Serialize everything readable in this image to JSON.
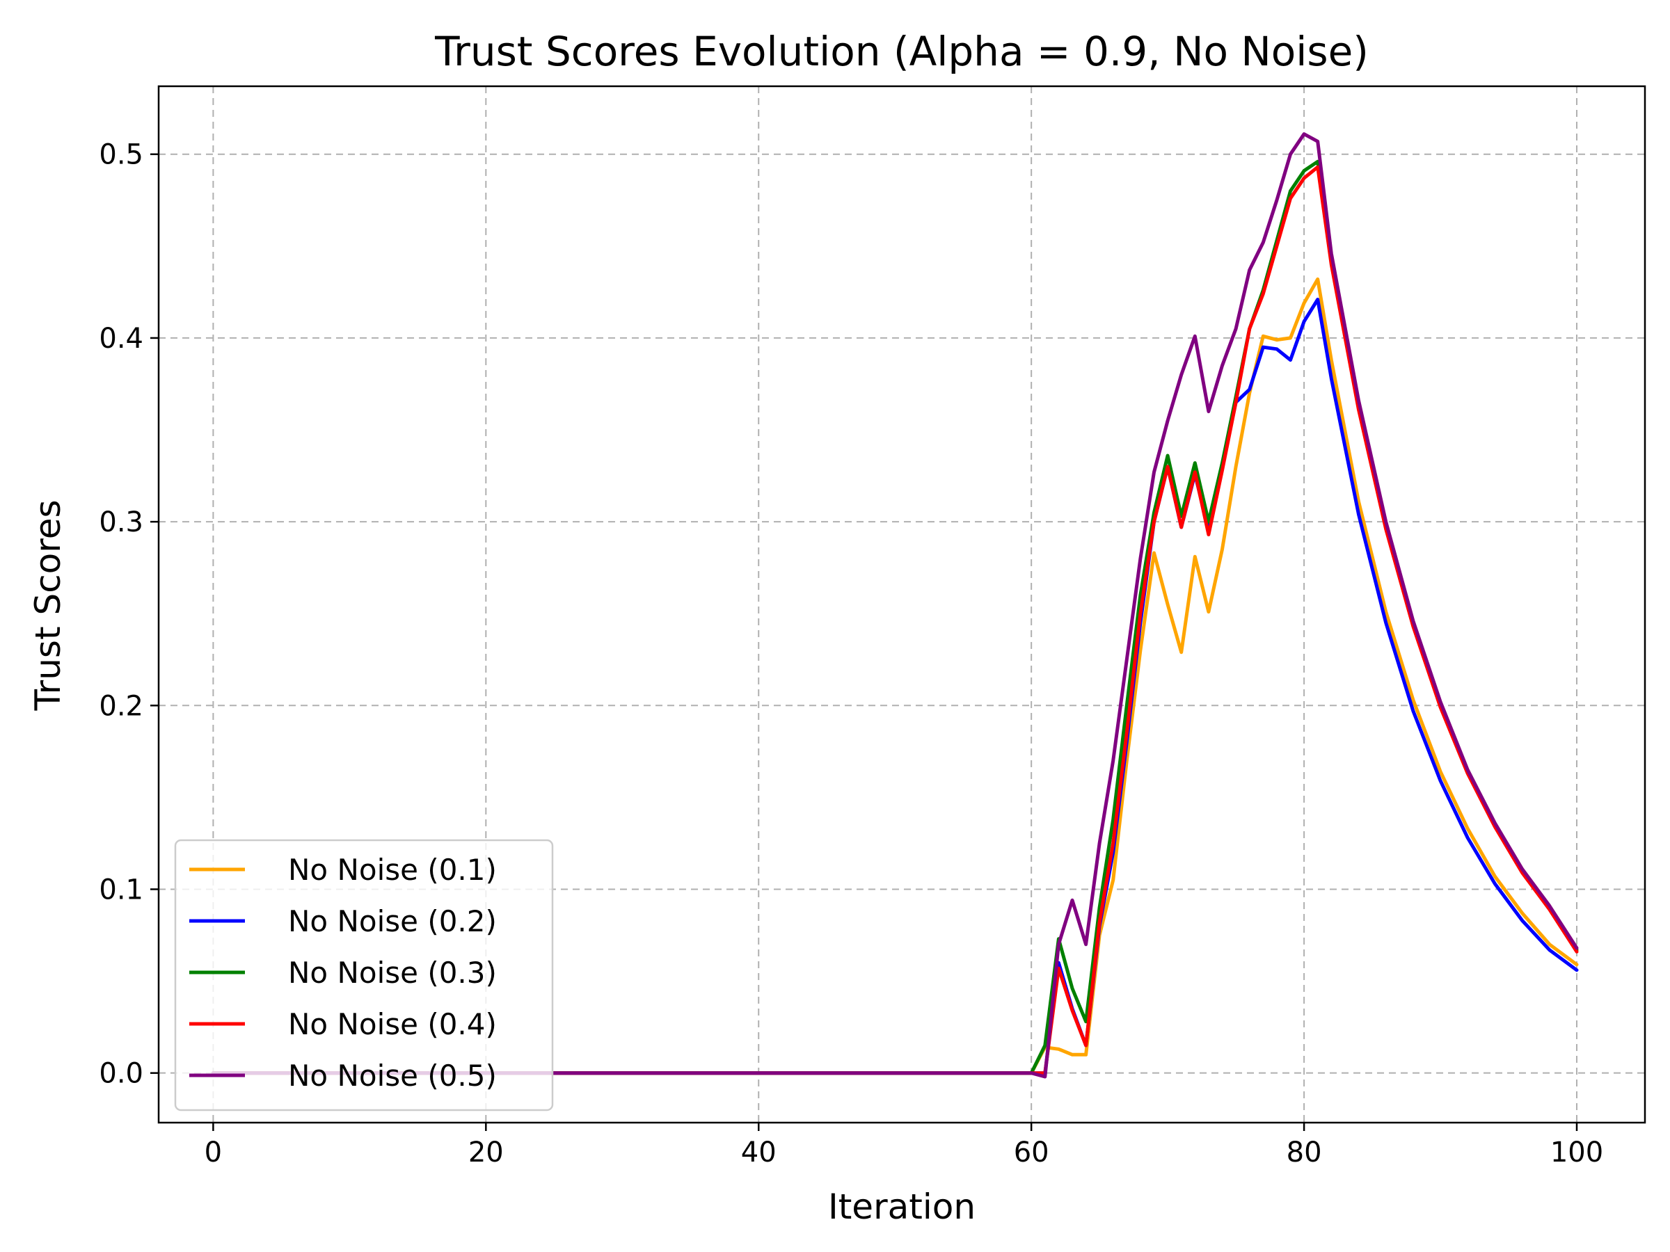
{
  "chart_data": {
    "type": "line",
    "title": "Trust Scores Evolution (Alpha = 0.9, No Noise)",
    "xlabel": "Iteration",
    "ylabel": "Trust Scores",
    "xlim": [
      -4,
      105
    ],
    "ylim": [
      -0.027,
      0.537
    ],
    "xticks": [
      0,
      20,
      40,
      60,
      80,
      100
    ],
    "yticks": [
      0.0,
      0.1,
      0.2,
      0.3,
      0.4,
      0.5
    ],
    "xtick_labels": [
      "0",
      "20",
      "40",
      "60",
      "80",
      "100"
    ],
    "ytick_labels": [
      "0.0",
      "0.1",
      "0.2",
      "0.3",
      "0.4",
      "0.5"
    ],
    "grid": true,
    "legend_position": "lower-left",
    "series": [
      {
        "name": "No Noise (0.1)",
        "color": "#ffa500",
        "x": [
          0,
          60,
          61,
          62,
          63,
          64,
          65,
          66,
          67,
          68,
          69,
          70,
          71,
          72,
          73,
          74,
          75,
          76,
          77,
          78,
          79,
          80,
          81,
          82,
          84,
          86,
          88,
          90,
          92,
          94,
          96,
          98,
          100
        ],
        "y": [
          0.0,
          0.0,
          0.014,
          0.013,
          0.01,
          0.01,
          0.075,
          0.105,
          0.17,
          0.23,
          0.283,
          0.255,
          0.229,
          0.281,
          0.251,
          0.285,
          0.33,
          0.37,
          0.401,
          0.399,
          0.4,
          0.419,
          0.432,
          0.388,
          0.311,
          0.251,
          0.203,
          0.164,
          0.133,
          0.107,
          0.087,
          0.07,
          0.059
        ]
      },
      {
        "name": "No Noise (0.2)",
        "color": "#0000ff",
        "x": [
          0,
          60,
          61,
          62,
          63,
          64,
          65,
          66,
          67,
          68,
          69,
          70,
          71,
          72,
          73,
          74,
          75,
          76,
          77,
          78,
          79,
          80,
          81,
          82,
          84,
          86,
          88,
          90,
          92,
          94,
          96,
          98,
          100
        ],
        "y": [
          0.0,
          0.0,
          0.0,
          0.06,
          0.035,
          0.015,
          0.08,
          0.12,
          0.18,
          0.245,
          0.3,
          0.33,
          0.297,
          0.326,
          0.295,
          0.33,
          0.365,
          0.372,
          0.395,
          0.394,
          0.388,
          0.409,
          0.421,
          0.378,
          0.304,
          0.245,
          0.197,
          0.159,
          0.128,
          0.103,
          0.083,
          0.067,
          0.056
        ]
      },
      {
        "name": "No Noise (0.3)",
        "color": "#008000",
        "x": [
          0,
          60,
          61,
          62,
          63,
          64,
          65,
          66,
          67,
          68,
          69,
          70,
          71,
          72,
          73,
          74,
          75,
          76,
          77,
          78,
          79,
          80,
          81,
          82,
          84,
          86,
          88,
          90,
          92,
          94,
          96,
          98,
          100
        ],
        "y": [
          0.0,
          0.0,
          0.015,
          0.073,
          0.046,
          0.028,
          0.09,
          0.138,
          0.2,
          0.26,
          0.305,
          0.336,
          0.303,
          0.332,
          0.3,
          0.332,
          0.368,
          0.405,
          0.426,
          0.453,
          0.48,
          0.491,
          0.496,
          0.441,
          0.362,
          0.297,
          0.244,
          0.2,
          0.164,
          0.135,
          0.11,
          0.09,
          0.067
        ]
      },
      {
        "name": "No Noise (0.4)",
        "color": "#ff0000",
        "x": [
          0,
          60,
          61,
          62,
          63,
          64,
          65,
          66,
          67,
          68,
          69,
          70,
          71,
          72,
          73,
          74,
          75,
          76,
          77,
          78,
          79,
          80,
          81,
          82,
          84,
          86,
          88,
          90,
          92,
          94,
          96,
          98,
          100
        ],
        "y": [
          0.0,
          0.0,
          0.0,
          0.057,
          0.034,
          0.015,
          0.082,
          0.125,
          0.185,
          0.25,
          0.3,
          0.33,
          0.297,
          0.327,
          0.293,
          0.328,
          0.365,
          0.405,
          0.424,
          0.45,
          0.476,
          0.487,
          0.493,
          0.44,
          0.361,
          0.296,
          0.243,
          0.199,
          0.163,
          0.134,
          0.109,
          0.089,
          0.066
        ]
      },
      {
        "name": "No Noise (0.5)",
        "color": "#800080",
        "x": [
          0,
          60,
          61,
          62,
          63,
          64,
          65,
          66,
          67,
          68,
          69,
          70,
          71,
          72,
          73,
          74,
          75,
          76,
          77,
          78,
          79,
          80,
          81,
          82,
          84,
          86,
          88,
          90,
          92,
          94,
          96,
          98,
          100
        ],
        "y": [
          0.0,
          0.0,
          -0.002,
          0.07,
          0.094,
          0.07,
          0.125,
          0.17,
          0.225,
          0.28,
          0.327,
          0.355,
          0.38,
          0.401,
          0.36,
          0.385,
          0.405,
          0.437,
          0.452,
          0.475,
          0.5,
          0.511,
          0.507,
          0.446,
          0.366,
          0.3,
          0.246,
          0.202,
          0.165,
          0.136,
          0.111,
          0.091,
          0.068
        ]
      }
    ]
  }
}
